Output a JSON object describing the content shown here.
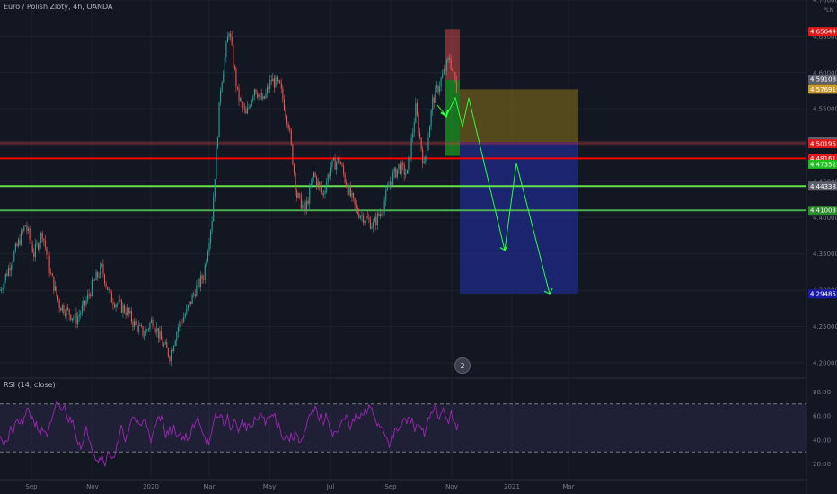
{
  "header": {
    "symbol_title": "Euro / Polish Zloty, 4h, OANDA",
    "unit_label": "PLN",
    "rsi_label": "RSI (14, close)",
    "badge_logo": "2"
  },
  "colors": {
    "background": "#131722",
    "up": "#26a69a",
    "down": "#ef5350",
    "red_level": "#ff0000",
    "green_level": "#7cff5a",
    "rsi_line": "#9c27b0",
    "target_box": "#1f2a8a",
    "stop_box": "#6b5a1c",
    "arrow": "#28ff3c"
  },
  "chart_data": [
    {
      "type": "candlestick",
      "title": "Euro / Polish Zloty, 4h, OANDA",
      "x_ticks": [
        "Sep",
        "Nov",
        "2020",
        "Mar",
        "May",
        "Jul",
        "Sep",
        "Nov",
        "2021",
        "Mar"
      ],
      "y_ticks": [
        "4.70000",
        "4.65000",
        "4.60000",
        "4.55000",
        "4.50000",
        "4.45000",
        "4.40000",
        "4.35000",
        "4.30000",
        "4.25000",
        "4.20000"
      ],
      "ylim": [
        4.18,
        4.7
      ],
      "path_points": [
        [
          0,
          4.3
        ],
        [
          2,
          4.33
        ],
        [
          4,
          4.36
        ],
        [
          6,
          4.39
        ],
        [
          8,
          4.35
        ],
        [
          10,
          4.38
        ],
        [
          12,
          4.32
        ],
        [
          14,
          4.28
        ],
        [
          16,
          4.27
        ],
        [
          18,
          4.26
        ],
        [
          20,
          4.28
        ],
        [
          22,
          4.31
        ],
        [
          24,
          4.33
        ],
        [
          26,
          4.29
        ],
        [
          28,
          4.28
        ],
        [
          30,
          4.27
        ],
        [
          32,
          4.25
        ],
        [
          34,
          4.24
        ],
        [
          36,
          4.26
        ],
        [
          38,
          4.23
        ],
        [
          40,
          4.21
        ],
        [
          42,
          4.25
        ],
        [
          44,
          4.27
        ],
        [
          46,
          4.3
        ],
        [
          48,
          4.32
        ],
        [
          50,
          4.4
        ],
        [
          52,
          4.58
        ],
        [
          54,
          4.66
        ],
        [
          56,
          4.57
        ],
        [
          58,
          4.54
        ],
        [
          60,
          4.58
        ],
        [
          62,
          4.56
        ],
        [
          64,
          4.59
        ],
        [
          66,
          4.58
        ],
        [
          68,
          4.53
        ],
        [
          70,
          4.43
        ],
        [
          72,
          4.41
        ],
        [
          74,
          4.46
        ],
        [
          76,
          4.43
        ],
        [
          78,
          4.47
        ],
        [
          80,
          4.48
        ],
        [
          82,
          4.44
        ],
        [
          84,
          4.41
        ],
        [
          86,
          4.4
        ],
        [
          88,
          4.39
        ],
        [
          90,
          4.41
        ],
        [
          92,
          4.45
        ],
        [
          94,
          4.47
        ],
        [
          96,
          4.46
        ],
        [
          98,
          4.55
        ],
        [
          100,
          4.47
        ],
        [
          102,
          4.56
        ],
        [
          104,
          4.59
        ],
        [
          106,
          4.62
        ],
        [
          108,
          4.57
        ]
      ],
      "levels": [
        {
          "label": "4.65644",
          "value": 4.65644,
          "color": "#e01a1a"
        },
        {
          "label": "4.59108",
          "value": 4.59108,
          "color": "#5d606b"
        },
        {
          "label": "4.57691",
          "value": 4.57691,
          "color": "#c99a2e"
        },
        {
          "label": "4.50433",
          "value": 4.50433,
          "color": "#5d606b"
        },
        {
          "label": "4.50195",
          "value": 4.50195,
          "color": "#e01a1a"
        },
        {
          "label": "4.48161",
          "value": 4.48161,
          "color": "#e01a1a"
        },
        {
          "label": "4.47352",
          "value": 4.47352,
          "color": "#1fbf1f"
        },
        {
          "label": "4.44338",
          "value": 4.44338,
          "color": "#5d606b"
        },
        {
          "label": "4.41003",
          "value": 4.41003,
          "color": "#2e8b2e"
        },
        {
          "label": "4.29485",
          "value": 4.29485,
          "color": "#1a1aa8"
        }
      ]
    },
    {
      "type": "line",
      "title": "RSI (14, close)",
      "y_ticks": [
        "80.00",
        "60.00",
        "40.00",
        "20.00"
      ],
      "ylim": [
        10,
        90
      ],
      "band": [
        30,
        70
      ]
    }
  ]
}
